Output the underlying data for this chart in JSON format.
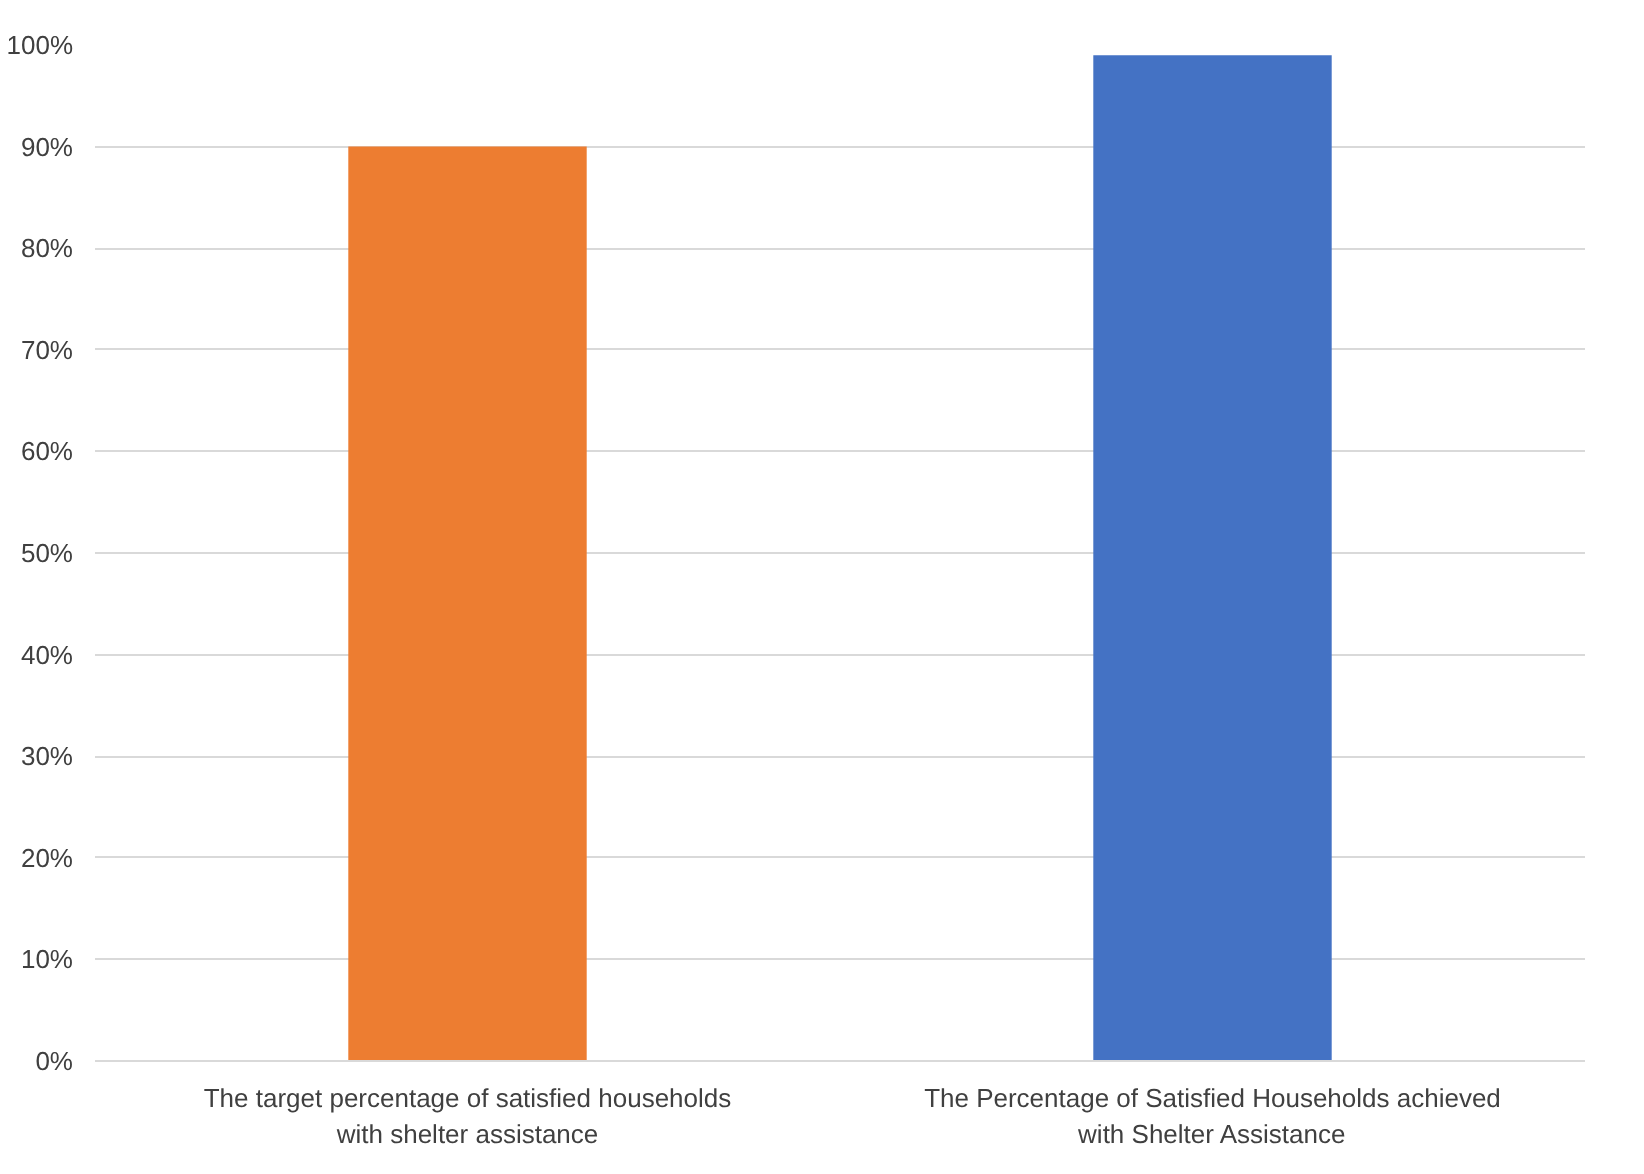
{
  "chart_data": {
    "type": "bar",
    "categories": [
      "The target percentage of satisfied households with shelter assistance",
      "The Percentage of Satisfied Households achieved with Shelter Assistance"
    ],
    "values": [
      90,
      99
    ],
    "colors": [
      "#ed7d31",
      "#4472c4"
    ],
    "ylim": [
      0,
      100
    ],
    "yticks": [
      {
        "value": 0,
        "label": "0%"
      },
      {
        "value": 10,
        "label": "10%"
      },
      {
        "value": 20,
        "label": "20%"
      },
      {
        "value": 30,
        "label": "30%"
      },
      {
        "value": 40,
        "label": "40%"
      },
      {
        "value": 50,
        "label": "50%"
      },
      {
        "value": 60,
        "label": "60%"
      },
      {
        "value": 70,
        "label": "70%"
      },
      {
        "value": 80,
        "label": "80%"
      },
      {
        "value": 90,
        "label": "90%"
      },
      {
        "value": 100,
        "label": "100%"
      }
    ],
    "grid": "y"
  }
}
